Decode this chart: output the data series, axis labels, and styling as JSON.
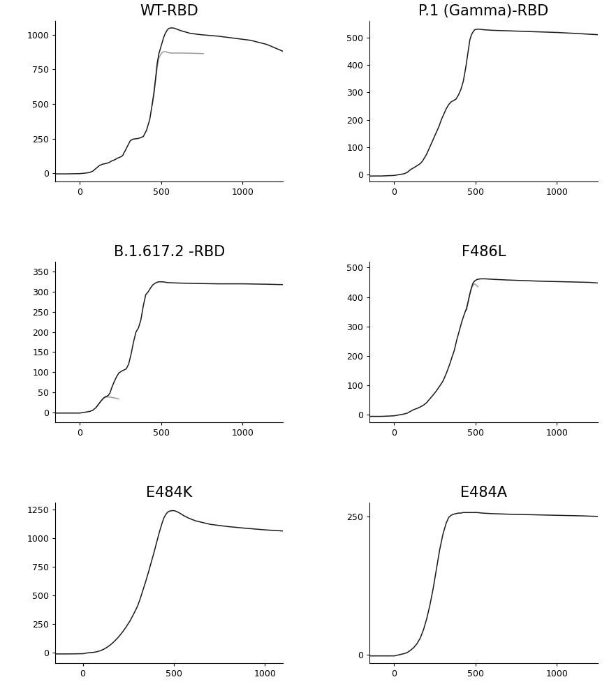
{
  "panels": [
    {
      "title": "WT-RBD",
      "xlim": [
        -150,
        1250
      ],
      "ylim": [
        -60,
        1100
      ],
      "yticks": [
        0,
        250,
        500,
        750,
        1000
      ],
      "xticks": [
        0,
        500,
        1000
      ],
      "curve": {
        "x": [
          -150,
          -80,
          0,
          30,
          60,
          80,
          100,
          120,
          140,
          160,
          175,
          185,
          190,
          200,
          210,
          220,
          230,
          235,
          245,
          255,
          265,
          270,
          280,
          295,
          310,
          325,
          340,
          355,
          370,
          390,
          410,
          430,
          445,
          455,
          465,
          475,
          485,
          495,
          505,
          515,
          525,
          535,
          545,
          560,
          580,
          620,
          680,
          750,
          850,
          950,
          1050,
          1150,
          1250
        ],
        "y": [
          -5,
          -5,
          -3,
          0,
          5,
          15,
          35,
          55,
          65,
          70,
          75,
          80,
          85,
          90,
          95,
          100,
          108,
          110,
          115,
          120,
          130,
          145,
          165,
          200,
          235,
          245,
          248,
          250,
          255,
          265,
          310,
          390,
          500,
          580,
          680,
          790,
          860,
          900,
          940,
          980,
          1010,
          1030,
          1045,
          1050,
          1048,
          1030,
          1010,
          1000,
          990,
          975,
          960,
          930,
          880
        ]
      },
      "curve2": {
        "x": [
          445,
          455,
          465,
          475,
          485,
          495,
          505,
          515,
          525,
          535,
          545,
          560,
          590,
          640,
          700,
          760
        ],
        "y": [
          490,
          565,
          660,
          760,
          830,
          855,
          870,
          878,
          878,
          875,
          870,
          868,
          868,
          868,
          866,
          864
        ]
      }
    },
    {
      "title": "P.1 (Gamma)-RBD",
      "xlim": [
        -150,
        1250
      ],
      "ylim": [
        -25,
        560
      ],
      "yticks": [
        0,
        100,
        200,
        300,
        400,
        500
      ],
      "xticks": [
        0,
        500,
        1000
      ],
      "curve": {
        "x": [
          -150,
          -80,
          0,
          30,
          60,
          80,
          100,
          120,
          140,
          160,
          175,
          185,
          200,
          215,
          230,
          245,
          260,
          275,
          290,
          305,
          320,
          335,
          350,
          365,
          380,
          395,
          410,
          425,
          440,
          455,
          465,
          475,
          485,
          495,
          510,
          525,
          550,
          600,
          700,
          800,
          900,
          1000,
          1100,
          1250
        ],
        "y": [
          -5,
          -5,
          -3,
          0,
          3,
          8,
          18,
          25,
          32,
          40,
          50,
          60,
          75,
          95,
          115,
          135,
          155,
          175,
          200,
          220,
          240,
          255,
          265,
          270,
          275,
          290,
          310,
          340,
          390,
          450,
          490,
          510,
          520,
          528,
          530,
          530,
          528,
          526,
          524,
          522,
          520,
          518,
          515,
          510
        ]
      },
      "curve2": null
    },
    {
      "title": "B.1.617.2 -RBD",
      "xlim": [
        -150,
        1250
      ],
      "ylim": [
        -25,
        375
      ],
      "yticks": [
        0,
        50,
        100,
        150,
        200,
        250,
        300,
        350
      ],
      "xticks": [
        0,
        500,
        1000
      ],
      "curve": {
        "x": [
          -150,
          -80,
          0,
          30,
          60,
          80,
          100,
          115,
          130,
          145,
          155,
          165,
          175,
          185,
          195,
          210,
          225,
          240,
          255,
          270,
          285,
          300,
          315,
          330,
          345,
          360,
          375,
          390,
          405,
          420,
          435,
          450,
          465,
          475,
          485,
          495,
          510,
          540,
          600,
          700,
          850,
          1000,
          1150,
          1250
        ],
        "y": [
          -2,
          -2,
          -2,
          0,
          2,
          5,
          12,
          20,
          28,
          35,
          38,
          40,
          42,
          48,
          60,
          75,
          88,
          98,
          102,
          105,
          108,
          120,
          145,
          175,
          200,
          210,
          230,
          265,
          293,
          300,
          310,
          318,
          322,
          324,
          325,
          325,
          325,
          323,
          322,
          321,
          320,
          320,
          319,
          318
        ]
      },
      "curve2": {
        "x": [
          100,
          115,
          130,
          145,
          155,
          165,
          175,
          185,
          195,
          210,
          220,
          230,
          240
        ],
        "y": [
          12,
          20,
          28,
          35,
          37,
          38,
          38,
          38,
          37,
          36,
          35,
          34,
          33
        ]
      }
    },
    {
      "title": "F486L",
      "xlim": [
        -150,
        1250
      ],
      "ylim": [
        -25,
        520
      ],
      "yticks": [
        0,
        100,
        200,
        300,
        400,
        500
      ],
      "xticks": [
        0,
        500,
        1000
      ],
      "curve": {
        "x": [
          -150,
          -80,
          0,
          30,
          60,
          80,
          100,
          120,
          140,
          160,
          180,
          200,
          220,
          240,
          260,
          280,
          300,
          320,
          340,
          355,
          370,
          385,
          400,
          415,
          425,
          435,
          445,
          455,
          465,
          475,
          485,
          495,
          510,
          530,
          560,
          620,
          700,
          800,
          900,
          1050,
          1200,
          1250
        ],
        "y": [
          -5,
          -5,
          -3,
          0,
          3,
          6,
          12,
          18,
          22,
          27,
          33,
          42,
          55,
          68,
          82,
          98,
          115,
          140,
          170,
          195,
          220,
          255,
          285,
          315,
          332,
          348,
          362,
          385,
          410,
          432,
          448,
          455,
          460,
          462,
          462,
          460,
          458,
          456,
          454,
          452,
          450,
          448
        ]
      },
      "curve2": {
        "x": [
          445,
          455,
          465,
          475,
          485,
          495,
          505,
          515
        ],
        "y": [
          355,
          385,
          410,
          430,
          440,
          445,
          440,
          435
        ]
      }
    },
    {
      "title": "E484K",
      "xlim": [
        -150,
        1100
      ],
      "ylim": [
        -90,
        1310
      ],
      "yticks": [
        0,
        250,
        500,
        750,
        1000,
        1250
      ],
      "xticks": [
        0,
        500,
        1000
      ],
      "curve": {
        "x": [
          -150,
          -80,
          0,
          30,
          60,
          80,
          100,
          120,
          140,
          160,
          180,
          200,
          220,
          240,
          260,
          280,
          300,
          315,
          330,
          345,
          360,
          375,
          390,
          405,
          420,
          435,
          445,
          455,
          465,
          475,
          485,
          495,
          505,
          515,
          530,
          550,
          580,
          620,
          700,
          800,
          900,
          1000,
          1100
        ],
        "y": [
          -10,
          -10,
          -8,
          0,
          4,
          10,
          20,
          35,
          55,
          80,
          110,
          145,
          185,
          230,
          280,
          340,
          405,
          470,
          545,
          620,
          700,
          785,
          870,
          960,
          1050,
          1130,
          1175,
          1205,
          1225,
          1235,
          1238,
          1240,
          1238,
          1232,
          1220,
          1200,
          1175,
          1150,
          1120,
          1100,
          1085,
          1072,
          1062
        ]
      },
      "curve2": null
    },
    {
      "title": "E484A",
      "xlim": [
        -150,
        1250
      ],
      "ylim": [
        -15,
        275
      ],
      "yticks": [
        0,
        250
      ],
      "xticks": [
        0,
        500,
        1000
      ],
      "curve": {
        "x": [
          -150,
          -80,
          0,
          30,
          60,
          80,
          100,
          120,
          140,
          160,
          180,
          200,
          220,
          240,
          260,
          280,
          300,
          320,
          335,
          350,
          365,
          380,
          395,
          410,
          425,
          440,
          455,
          465,
          475,
          485,
          495,
          510,
          540,
          600,
          700,
          850,
          1000,
          1150,
          1250
        ],
        "y": [
          -2,
          -2,
          -2,
          0,
          2,
          4,
          8,
          13,
          20,
          30,
          45,
          65,
          90,
          120,
          155,
          190,
          218,
          238,
          248,
          252,
          254,
          255,
          256,
          256,
          257,
          257,
          257,
          257,
          257,
          257,
          257,
          257,
          256,
          255,
          254,
          253,
          252,
          251,
          250
        ]
      },
      "curve2": null
    }
  ],
  "line_color": "#1a1a1a",
  "line_color2": "#999999",
  "title_fontsize": 15,
  "tick_fontsize": 9,
  "background_color": "#ffffff"
}
